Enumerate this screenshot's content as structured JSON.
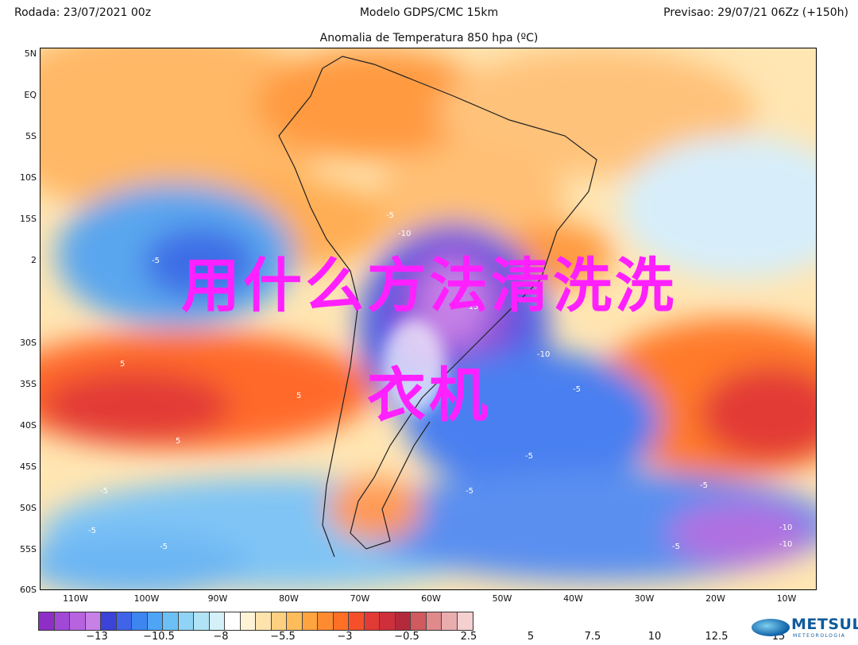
{
  "header": {
    "left": "Rodada: 23/07/2021 00z",
    "center": "Modelo GDPS/CMC 15km",
    "right": "Previsao: 29/07/21 06Zz (+150h)",
    "subtitle": "Anomalia de Temperatura 850 hpa (ºC)"
  },
  "lat_labels": [
    "5N",
    "EQ",
    "5S",
    "10S",
    "15S",
    "2",
    "30S",
    "35S",
    "40S",
    "45S",
    "50S",
    "55S",
    "60S"
  ],
  "lon_labels": [
    "110W",
    "100W",
    "90W",
    "80W",
    "70W",
    "60W",
    "50W",
    "40W",
    "30W",
    "20W",
    "10W"
  ],
  "contour_labels": [
    "-5",
    "-10",
    "-5",
    "-15",
    "-10",
    "-5",
    "-5",
    "5",
    "5",
    "5",
    "-5",
    "-5",
    "-5",
    "-5",
    "-5",
    "-10",
    "-10",
    "-5"
  ],
  "overlay_text": {
    "line1": "用什么方法清洗洗",
    "line2": "衣机"
  },
  "colorbar": {
    "colors": [
      "#8e2ec7",
      "#a248d6",
      "#b763df",
      "#c680e6",
      "#3b43d9",
      "#3f63e9",
      "#3d85f0",
      "#4ea4f5",
      "#6cc0f6",
      "#8fd4f6",
      "#b1e3f6",
      "#d4f0f8",
      "#ffffff",
      "#fff3d6",
      "#ffe3ac",
      "#ffd07f",
      "#ffbc5a",
      "#ffa43f",
      "#ff8b30",
      "#ff6f26",
      "#f5502a",
      "#e23a34",
      "#cf2f3a",
      "#b52a3a",
      "#cf5a5f",
      "#e08a8b",
      "#eaadae",
      "#f4d0d0"
    ],
    "ticks": [
      "−13",
      "−10.5",
      "−8",
      "−5.5",
      "−3",
      "−0.5",
      "2.5",
      "5",
      "7.5",
      "10",
      "12.5",
      "15"
    ]
  },
  "logo": {
    "name": "METSUL",
    "subtext": "METEOROLOGIA"
  }
}
